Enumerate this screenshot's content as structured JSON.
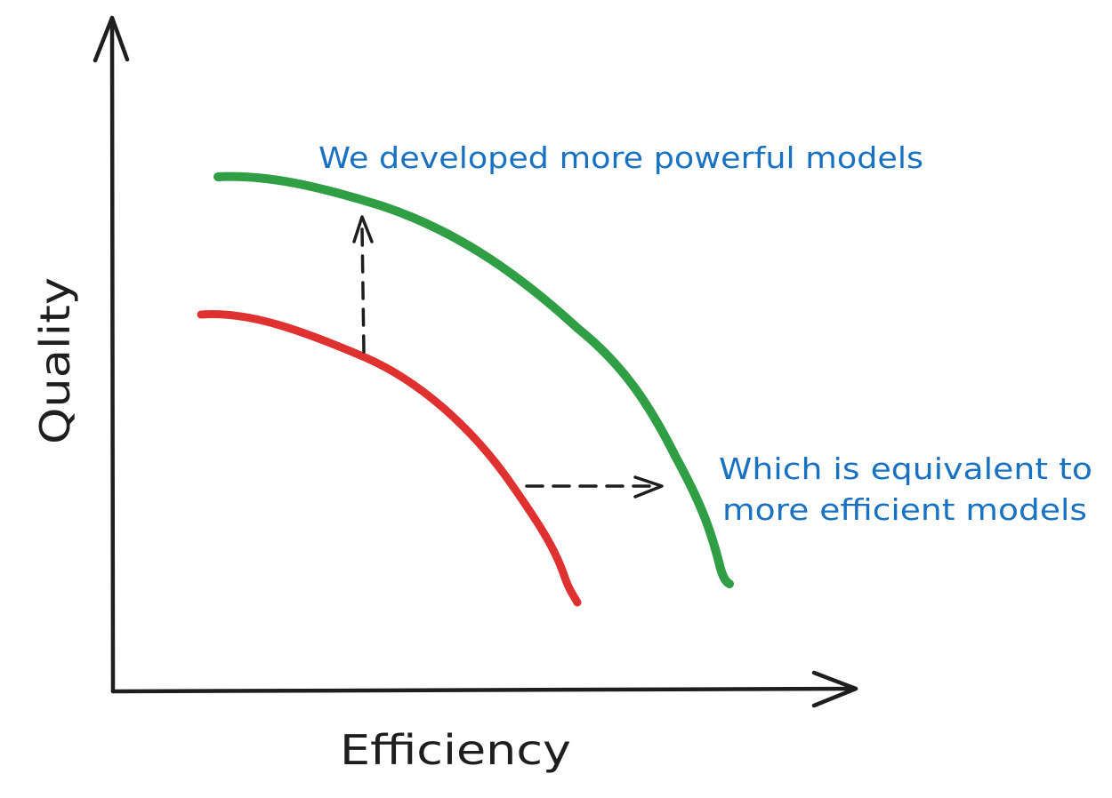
{
  "axes": {
    "x_label": "Efficiency",
    "y_label": "Quality"
  },
  "annotations": {
    "top_note": "We developed more powerful models",
    "side_note_line1": "Which is equivalent to",
    "side_note_line2": "more efficient models"
  },
  "colors": {
    "axis": "#1e1e1e",
    "old_frontier": "#e03131",
    "new_frontier": "#2f9e44",
    "note_text": "#1971c2"
  }
}
